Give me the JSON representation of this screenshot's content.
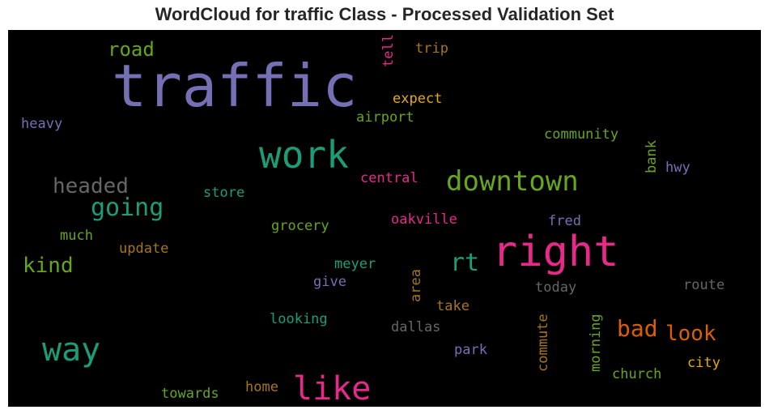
{
  "title": "WordCloud for traffic Class - Processed Validation Set",
  "words": [
    {
      "text": "traffic",
      "color": "#7570b3"
    },
    {
      "text": "right",
      "color": "#e7298a"
    },
    {
      "text": "work",
      "color": "#1b9e77"
    },
    {
      "text": "downtown",
      "color": "#66a61e"
    },
    {
      "text": "like",
      "color": "#e7298a"
    },
    {
      "text": "way",
      "color": "#1b9e77"
    },
    {
      "text": "going",
      "color": "#1b9e77"
    },
    {
      "text": "headed",
      "color": "#666666"
    },
    {
      "text": "rt",
      "color": "#1b9e77"
    },
    {
      "text": "kind",
      "color": "#66a61e"
    },
    {
      "text": "bad",
      "color": "#d95f02"
    },
    {
      "text": "look",
      "color": "#d95f02"
    },
    {
      "text": "road",
      "color": "#66a61e"
    },
    {
      "text": "expect",
      "color": "#e6ab02"
    },
    {
      "text": "airport",
      "color": "#66a61e"
    },
    {
      "text": "trip",
      "color": "#a6761d"
    },
    {
      "text": "tell",
      "color": "#e7298a"
    },
    {
      "text": "heavy",
      "color": "#7570b3"
    },
    {
      "text": "community",
      "color": "#66a61e"
    },
    {
      "text": "central",
      "color": "#e7298a"
    },
    {
      "text": "bank",
      "color": "#66a61e"
    },
    {
      "text": "hwy",
      "color": "#7570b3"
    },
    {
      "text": "store",
      "color": "#1b9e77"
    },
    {
      "text": "oakville",
      "color": "#e7298a"
    },
    {
      "text": "fred",
      "color": "#7570b3"
    },
    {
      "text": "grocery",
      "color": "#66a61e"
    },
    {
      "text": "much",
      "color": "#66a61e"
    },
    {
      "text": "update",
      "color": "#a6761d"
    },
    {
      "text": "meyer",
      "color": "#1b9e77"
    },
    {
      "text": "give",
      "color": "#7570b3"
    },
    {
      "text": "area",
      "color": "#a6761d"
    },
    {
      "text": "today",
      "color": "#666666"
    },
    {
      "text": "route",
      "color": "#666666"
    },
    {
      "text": "take",
      "color": "#a6761d"
    },
    {
      "text": "looking",
      "color": "#1b9e77"
    },
    {
      "text": "dallas",
      "color": "#666666"
    },
    {
      "text": "commute",
      "color": "#a6761d"
    },
    {
      "text": "morning",
      "color": "#66a61e"
    },
    {
      "text": "park",
      "color": "#7570b3"
    },
    {
      "text": "church",
      "color": "#66a61e"
    },
    {
      "text": "city",
      "color": "#e6ab02"
    },
    {
      "text": "towards",
      "color": "#66a61e"
    },
    {
      "text": "home",
      "color": "#a6761d"
    }
  ]
}
